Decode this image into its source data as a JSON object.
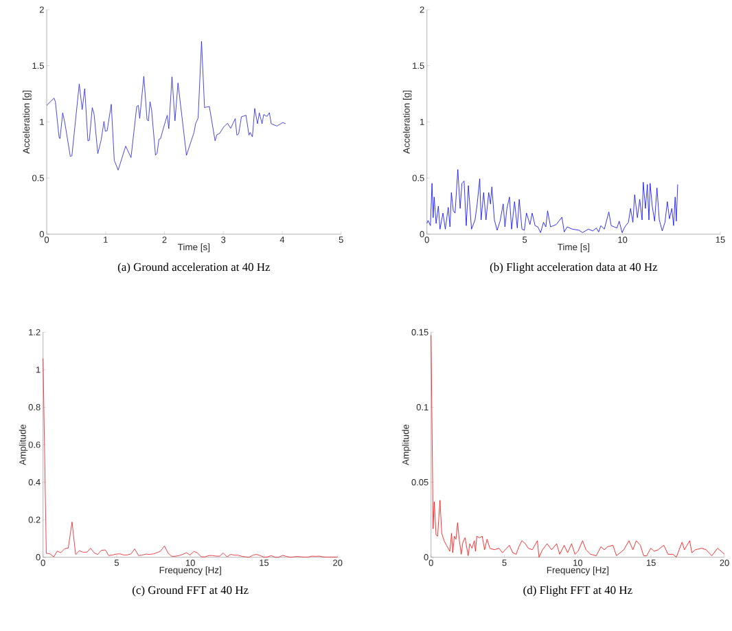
{
  "chart_data": [
    {
      "type": "line",
      "title": "(a) Ground acceleration at 40 Hz",
      "xlabel": "Time [s]",
      "ylabel": "Acceleration [g]",
      "x": [
        0,
        0.125,
        0.148,
        0.21,
        0.226,
        0.272,
        0.311,
        0.401,
        0.428,
        0.553,
        0.603,
        0.646,
        0.7,
        0.724,
        0.774,
        0.805,
        0.868,
        0.926,
        0.973,
        0.996,
        1.027,
        1.097,
        1.148,
        1.214,
        1.342,
        1.432,
        1.529,
        1.556,
        1.58,
        1.65,
        1.704,
        1.728,
        1.755,
        1.782,
        1.848,
        1.875,
        1.907,
        1.934,
        1.984,
        2.047,
        2.074,
        2.128,
        2.179,
        2.23,
        2.374,
        2.502,
        2.529,
        2.572,
        2.63,
        2.681,
        2.704,
        2.763,
        2.86,
        2.891,
        2.938,
        3.004,
        3.07,
        3.125,
        3.202,
        3.23,
        3.26,
        3.307,
        3.385,
        3.436,
        3.455,
        3.494,
        3.533,
        3.58,
        3.611,
        3.658,
        3.685,
        3.743,
        3.782,
        3.813,
        3.911,
        4.008,
        4.058
      ],
      "series": [
        {
          "color": "#1a1ad6",
          "values": [
            1.147,
            1.212,
            1.178,
            0.865,
            0.851,
            1.08,
            0.984,
            0.692,
            0.698,
            1.337,
            1.11,
            1.296,
            0.831,
            0.837,
            1.127,
            1.069,
            0.718,
            0.841,
            1.004,
            0.916,
            0.922,
            1.157,
            0.657,
            0.571,
            0.784,
            0.682,
            1.137,
            1.147,
            1.031,
            1.406,
            1.02,
            1.008,
            1.18,
            1.106,
            0.704,
            0.722,
            0.845,
            0.851,
            0.947,
            1.059,
            0.939,
            1.402,
            1.01,
            1.347,
            0.702,
            0.906,
            0.984,
            1.035,
            1.718,
            1.127,
            1.131,
            1.137,
            0.831,
            0.886,
            0.898,
            0.953,
            0.988,
            0.943,
            1.029,
            0.882,
            0.892,
            1.045,
            1.059,
            0.882,
            0.906,
            0.867,
            1.12,
            0.984,
            1.08,
            0.984,
            1.065,
            1.049,
            1.082,
            0.984,
            0.963,
            0.994,
            0.984
          ]
        }
      ],
      "xlim": [
        0,
        5
      ],
      "ylim": [
        0,
        2
      ],
      "xticks": [
        0,
        1,
        2,
        3,
        4,
        5
      ],
      "yticks": [
        0,
        0.5,
        1,
        1.5,
        2
      ]
    },
    {
      "type": "line",
      "title": "(b) Flight acceleration data at 40 Hz",
      "xlabel": "Time [s]",
      "ylabel": "Acceleration [g]",
      "x": [
        0,
        0.06,
        0.18,
        0.26,
        0.32,
        0.37,
        0.47,
        0.585,
        0.67,
        0.82,
        0.94,
        1.09,
        1.18,
        1.25,
        1.35,
        1.44,
        1.58,
        1.7,
        1.79,
        1.9,
        2.01,
        2.12,
        2.28,
        2.46,
        2.57,
        2.7,
        2.77,
        2.9,
        3.02,
        3.16,
        3.25,
        3.32,
        3.45,
        3.59,
        3.74,
        3.9,
        3.99,
        4.09,
        4.22,
        4.33,
        4.48,
        4.62,
        4.72,
        4.86,
        4.98,
        5.09,
        5.27,
        5.38,
        5.53,
        5.67,
        5.81,
        5.96,
        6.08,
        6.17,
        6.32,
        6.61,
        6.9,
        7.02,
        7.17,
        7.43,
        7.78,
        7.96,
        8.25,
        8.48,
        8.66,
        8.78,
        8.89,
        9.07,
        9.3,
        9.42,
        9.71,
        9.83,
        9.98,
        10.12,
        10.3,
        10.41,
        10.53,
        10.62,
        10.76,
        10.88,
        11.0,
        11.06,
        11.17,
        11.27,
        11.35,
        11.41,
        11.52,
        11.64,
        11.76,
        11.88,
        12.03,
        12.17,
        12.29,
        12.4,
        12.52,
        12.61,
        12.69,
        12.75,
        12.82
      ],
      "series": [
        {
          "color": "#0000ff",
          "values": [
            0.096,
            0.122,
            0.076,
            0.453,
            0.147,
            0.331,
            0.096,
            0.249,
            0.045,
            0.188,
            0.045,
            0.239,
            0.065,
            0.371,
            0.208,
            0.188,
            0.576,
            0.229,
            0.453,
            0.473,
            0.076,
            0.433,
            0.045,
            0.127,
            0.269,
            0.494,
            0.127,
            0.371,
            0.127,
            0.371,
            0.269,
            0.422,
            0.127,
            0.035,
            0.116,
            0.269,
            0.065,
            0.229,
            0.331,
            0.045,
            0.29,
            0.055,
            0.31,
            0.045,
            0.035,
            0.188,
            0.086,
            0.188,
            0.076,
            0.065,
            0.014,
            0.106,
            0.065,
            0.208,
            0.065,
            0.086,
            0.151,
            0.02,
            0.065,
            0.045,
            0.035,
            0.014,
            0.045,
            0.029,
            0.055,
            0.02,
            0.076,
            0.045,
            0.198,
            0.076,
            0.055,
            0.116,
            0.014,
            0.065,
            0.106,
            0.229,
            0.106,
            0.351,
            0.147,
            0.31,
            0.127,
            0.463,
            0.229,
            0.443,
            0.127,
            0.453,
            0.249,
            0.116,
            0.412,
            0.127,
            0.029,
            0.106,
            0.29,
            0.137,
            0.229,
            0.076,
            0.331,
            0.116,
            0.443
          ]
        }
      ],
      "xlim": [
        0,
        15
      ],
      "ylim": [
        0,
        2
      ],
      "xticks": [
        0,
        5,
        10,
        15
      ],
      "yticks": [
        0,
        0.5,
        1,
        1.5,
        2
      ]
    },
    {
      "type": "line",
      "title": "(c) Ground FFT at 40 Hz",
      "xlabel": "Frequency [Hz]",
      "ylabel": "Amplitude",
      "x": [
        0,
        0.22,
        0.47,
        0.73,
        0.96,
        1.2,
        1.46,
        1.71,
        1.97,
        2.21,
        2.47,
        2.7,
        2.98,
        3.22,
        3.48,
        3.71,
        3.96,
        4.23,
        4.46,
        4.72,
        4.97,
        5.24,
        5.47,
        5.7,
        5.97,
        6.22,
        6.48,
        6.71,
        6.98,
        7.21,
        7.49,
        7.72,
        7.96,
        8.24,
        8.5,
        8.73,
        8.97,
        9.23,
        9.48,
        9.74,
        9.98,
        10.24,
        10.49,
        10.75,
        10.99,
        11.25,
        11.5,
        11.76,
        12.0,
        12.23,
        12.49,
        12.74,
        13.0,
        13.24,
        13.5,
        13.75,
        13.99,
        14.25,
        14.48,
        14.75,
        15.0,
        15.26,
        15.49,
        15.76,
        16.0,
        16.27,
        16.5,
        16.77,
        17.02,
        17.25,
        17.51,
        17.75,
        18.01,
        18.24,
        18.49,
        18.76,
        18.99,
        19.25,
        19.49,
        19.77,
        20
      ],
      "series": [
        {
          "color": "#e8141e",
          "values": [
            1.06,
            0.021,
            0.018,
            0.002,
            0.033,
            0.024,
            0.045,
            0.049,
            0.188,
            0.015,
            0.035,
            0.027,
            0.027,
            0.048,
            0.023,
            0.015,
            0.037,
            0.039,
            0.009,
            0.012,
            0.017,
            0.018,
            0.012,
            0.012,
            0.018,
            0.045,
            0.009,
            0.011,
            0.017,
            0.015,
            0.018,
            0.024,
            0.031,
            0.06,
            0.021,
            0.005,
            0.005,
            0.009,
            0.015,
            0.024,
            0.012,
            0.031,
            0.023,
            0.002,
            0.002,
            0.009,
            0.009,
            0.006,
            0.006,
            0.023,
            0.002,
            0.015,
            0.011,
            0.011,
            0.005,
            0.002,
            0,
            0.011,
            0.015,
            0.009,
            0,
            0.002,
            0.009,
            0,
            0,
            0.01,
            0.005,
            0,
            0.002,
            0.004,
            0.002,
            0.001,
            0.001,
            0.006,
            0.005,
            0.006,
            0.002,
            0.001,
            0.001,
            0.001,
            0.001
          ]
        }
      ],
      "xlim": [
        0,
        20
      ],
      "ylim": [
        0,
        1.2
      ],
      "xticks": [
        0,
        5,
        10,
        15,
        20
      ],
      "yticks": [
        0,
        0.2,
        0.4,
        0.6,
        0.8,
        1,
        1.2
      ]
    },
    {
      "type": "line",
      "title": "(d) Flight FFT at 40 Hz",
      "xlabel": "Frequency [Hz]",
      "ylabel": "Amplitude",
      "x": [
        0,
        0.11,
        0.14,
        0.22,
        0.34,
        0.45,
        0.61,
        0.73,
        0.89,
        1.05,
        1.28,
        1.4,
        1.48,
        1.59,
        1.7,
        1.81,
        1.92,
        2.06,
        2.17,
        2.32,
        2.53,
        2.64,
        2.79,
        2.95,
        3.03,
        3.12,
        3.31,
        3.49,
        3.65,
        3.82,
        4.01,
        4.32,
        4.63,
        4.87,
        5.34,
        5.57,
        5.8,
        5.99,
        6.19,
        6.43,
        6.63,
        6.9,
        7.25,
        7.36,
        7.6,
        7.91,
        8.22,
        8.56,
        8.77,
        9.08,
        9.31,
        9.58,
        9.81,
        10.02,
        10.33,
        10.56,
        10.87,
        11.26,
        11.58,
        11.81,
        12.04,
        12.4,
        12.64,
        13.14,
        13.49,
        13.76,
        13.99,
        14.27,
        14.49,
        14.7,
        14.98,
        15.21,
        15.48,
        15.87,
        16.15,
        16.49,
        16.72,
        17.11,
        17.27,
        17.63,
        17.78,
        18.02,
        18.44,
        18.75,
        19.14,
        19.53,
        19.77,
        20
      ],
      "series": [
        {
          "color": "#ff0000",
          "values": [
            0.148,
            0.049,
            0.019,
            0.037,
            0.015,
            0.014,
            0.038,
            0.016,
            0.011,
            0.008,
            0.004,
            0.016,
            0.003,
            0.014,
            0.012,
            0.023,
            0.012,
            0.002,
            0.01,
            0.013,
            0.001,
            0.009,
            0.006,
            0.011,
            0.004,
            0.014,
            0.013,
            0.014,
            0.005,
            0.012,
            0.006,
            0.005,
            0.006,
            0.003,
            0.008,
            0.003,
            0.002,
            0.007,
            0.011,
            0.009,
            0.006,
            0.005,
            0.011,
            0,
            0.005,
            0.009,
            0.005,
            0.009,
            0.002,
            0.008,
            0.003,
            0.009,
            0.002,
            0.004,
            0.011,
            0.005,
            0.002,
            0.001,
            0.007,
            0.005,
            0.007,
            0.008,
            0.001,
            0.005,
            0.011,
            0.005,
            0.011,
            0.008,
            0.001,
            0.001,
            0.006,
            0.004,
            0.005,
            0.008,
            0.002,
            0.002,
            0,
            0.01,
            0.005,
            0.011,
            0.003,
            0.005,
            0.006,
            0.005,
            0.001,
            0.006,
            0.004,
            0.002
          ]
        }
      ],
      "xlim": [
        0,
        20
      ],
      "ylim": [
        0,
        0.15
      ],
      "xticks": [
        0,
        5,
        10,
        15,
        20
      ],
      "yticks": [
        0,
        0.05,
        0.1,
        0.15
      ]
    }
  ]
}
